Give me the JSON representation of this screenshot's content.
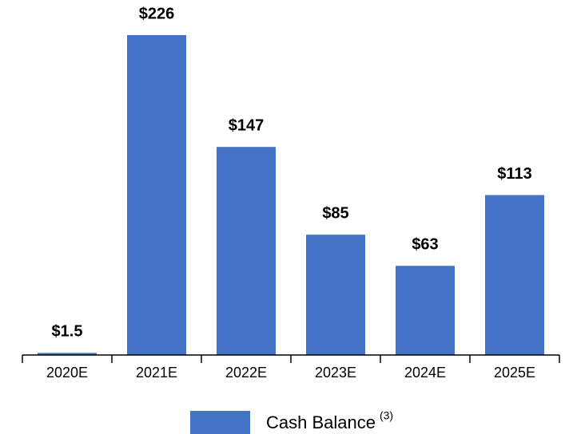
{
  "chart_data": {
    "type": "bar",
    "categories": [
      "2020E",
      "2021E",
      "2022E",
      "2023E",
      "2024E",
      "2025E"
    ],
    "series": [
      {
        "name": "Cash Balance",
        "color": "#4472c4",
        "values": [
          1.5,
          226,
          147,
          85,
          63,
          113
        ],
        "value_labels": [
          "$1.5",
          "$226",
          "$147",
          "$85",
          "$63",
          "$113"
        ]
      }
    ],
    "legend_note": "(3)",
    "ylim": [
      0,
      226
    ]
  }
}
